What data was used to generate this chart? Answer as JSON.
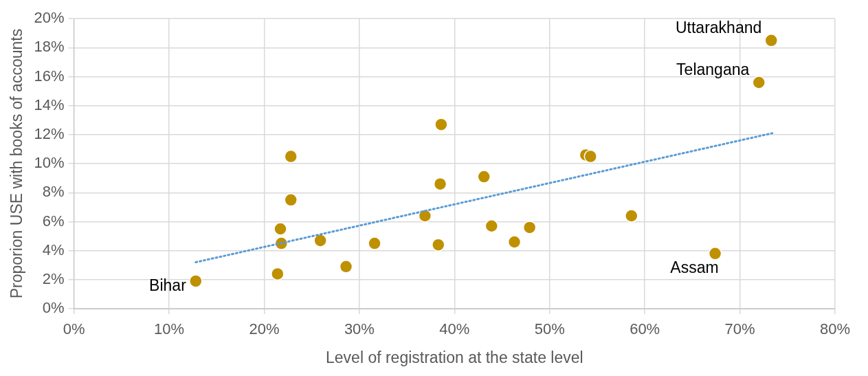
{
  "chart_data": {
    "type": "scatter",
    "xlabel": "Level of registration at the state level",
    "ylabel": "Proporion USE with books of accounts",
    "x": [
      12.8,
      21.4,
      21.7,
      21.8,
      22.8,
      22.8,
      25.9,
      28.6,
      31.6,
      36.9,
      38.3,
      38.5,
      38.6,
      43.1,
      43.9,
      46.3,
      47.9,
      53.8,
      54.3,
      58.6,
      67.4,
      72.0,
      73.3
    ],
    "series": [
      {
        "color": "#bf9000",
        "values": [
          1.9,
          2.4,
          5.5,
          4.5,
          10.5,
          7.5,
          4.7,
          2.9,
          4.5,
          6.4,
          4.4,
          8.6,
          12.7,
          9.1,
          5.7,
          4.6,
          5.6,
          10.6,
          10.5,
          6.4,
          3.8,
          15.6,
          18.5
        ]
      },
      {
        "type": "line",
        "x": [
          12.8,
          73.4
        ],
        "values": [
          3.2,
          12.1
        ],
        "color": "#5b9bd5",
        "line_style": "dotted",
        "marker": "none"
      }
    ],
    "marker": "circle",
    "xlim": [
      0,
      80
    ],
    "xticks": [
      {
        "value": 0,
        "label": "0%"
      },
      {
        "value": 10,
        "label": "10%"
      },
      {
        "value": 20,
        "label": "20%"
      },
      {
        "value": 30,
        "label": "30%"
      },
      {
        "value": 40,
        "label": "40%"
      },
      {
        "value": 50,
        "label": "50%"
      },
      {
        "value": 60,
        "label": "60%"
      },
      {
        "value": 70,
        "label": "70%"
      },
      {
        "value": 80,
        "label": "80%"
      }
    ],
    "ylim": [
      0,
      20
    ],
    "yticks": [
      {
        "value": 0,
        "label": "0%"
      },
      {
        "value": 2,
        "label": "2%"
      },
      {
        "value": 4,
        "label": "4%"
      },
      {
        "value": 6,
        "label": "6%"
      },
      {
        "value": 8,
        "label": "8%"
      },
      {
        "value": 10,
        "label": "10%"
      },
      {
        "value": 12,
        "label": "12%"
      },
      {
        "value": 14,
        "label": "14%"
      },
      {
        "value": 16,
        "label": "16%"
      },
      {
        "value": 18,
        "label": "18%"
      },
      {
        "value": 20,
        "label": "20%"
      }
    ],
    "grid": true,
    "legend": false,
    "annotations": [
      {
        "text": "Uttarakhand",
        "x": 73.3,
        "y": 18.5
      },
      {
        "text": "Telangana",
        "x": 72.0,
        "y": 15.6
      },
      {
        "text": "Assam",
        "x": 67.4,
        "y": 3.8
      },
      {
        "text": "Bihar",
        "x": 12.8,
        "y": 1.9
      }
    ]
  }
}
